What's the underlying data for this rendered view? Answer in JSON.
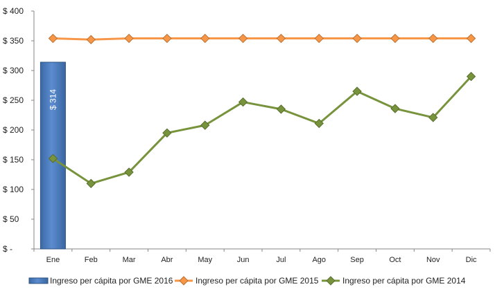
{
  "chart_data": {
    "type": "bar+line",
    "categories": [
      "Ene",
      "Feb",
      "Mar",
      "Abr",
      "May",
      "Jun",
      "Jul",
      "Ago",
      "Sep",
      "Oct",
      "Nov",
      "Dic"
    ],
    "y_ticks": [
      {
        "value": 0,
        "label": "$ -"
      },
      {
        "value": 50,
        "label": "$ 50"
      },
      {
        "value": 100,
        "label": "$ 100"
      },
      {
        "value": 150,
        "label": "$ 150"
      },
      {
        "value": 200,
        "label": "$ 200"
      },
      {
        "value": 250,
        "label": "$ 250"
      },
      {
        "value": 300,
        "label": "$ 300"
      },
      {
        "value": 350,
        "label": "$ 350"
      },
      {
        "value": 400,
        "label": "$ 400"
      }
    ],
    "ylim": [
      0,
      400
    ],
    "grid": false,
    "legend_position": "bottom",
    "series": [
      {
        "name": "Ingreso per cápita por GME 2016",
        "type": "bar",
        "color": "#4f81bd",
        "values": [
          314,
          null,
          null,
          null,
          null,
          null,
          null,
          null,
          null,
          null,
          null,
          null
        ],
        "data_labels": [
          "$ 314"
        ]
      },
      {
        "name": "Ingreso per cápita por GME 2015",
        "type": "line",
        "color": "#f79646",
        "marker": "diamond",
        "values": [
          354,
          352,
          354,
          354,
          354,
          354,
          354,
          354,
          354,
          354,
          354,
          354
        ]
      },
      {
        "name": "Ingreso per cápita por GME 2014",
        "type": "line",
        "color": "#77933c",
        "marker": "diamond",
        "values": [
          152,
          110,
          129,
          195,
          208,
          247,
          235,
          211,
          265,
          236,
          221,
          290
        ]
      }
    ]
  }
}
